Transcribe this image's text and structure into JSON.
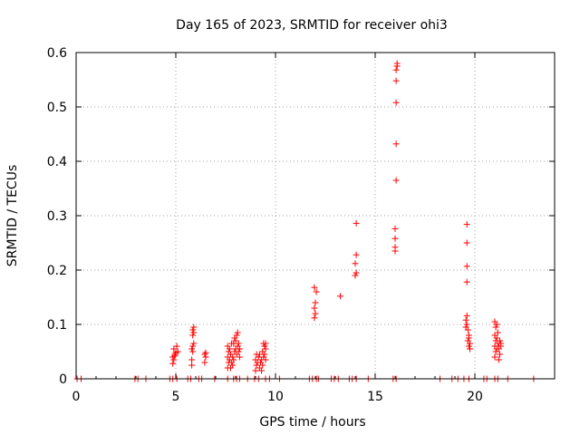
{
  "chart_data": {
    "type": "scatter",
    "title": "Day 165 of 2023, SRMTID for receiver ohi3",
    "xlabel": "GPS time / hours",
    "ylabel": "SRMTID / TECUs",
    "xlim": [
      0,
      24
    ],
    "ylim": [
      0,
      0.6
    ],
    "xticks": [
      0,
      5,
      10,
      15,
      20
    ],
    "yticks": [
      0,
      0.1,
      0.2,
      0.3,
      0.4,
      0.5,
      0.6
    ],
    "xtick_labels": [
      "0",
      "5",
      "10",
      "15",
      "20"
    ],
    "ytick_labels": [
      "0",
      "0.1",
      "0.2",
      "0.3",
      "0.4",
      "0.5",
      "0.6"
    ],
    "grid": true,
    "marker": "+",
    "color": "#ff0000",
    "series": [
      {
        "name": "SRMTID",
        "points": [
          [
            0.05,
            0
          ],
          [
            0.25,
            0
          ],
          [
            2.95,
            0
          ],
          [
            3.1,
            0
          ],
          [
            3.5,
            0
          ],
          [
            4.7,
            0
          ],
          [
            4.85,
            0
          ],
          [
            5.05,
            0
          ],
          [
            5.6,
            0
          ],
          [
            5.75,
            0
          ],
          [
            6.15,
            0
          ],
          [
            6.3,
            0
          ],
          [
            6.95,
            0
          ],
          [
            7.6,
            0
          ],
          [
            7.9,
            0
          ],
          [
            8.05,
            0
          ],
          [
            8.2,
            0
          ],
          [
            8.6,
            0
          ],
          [
            8.95,
            0
          ],
          [
            9.15,
            0
          ],
          [
            9.5,
            0
          ],
          [
            9.7,
            0
          ],
          [
            10.2,
            0
          ],
          [
            11.7,
            0
          ],
          [
            11.85,
            0
          ],
          [
            12.05,
            0
          ],
          [
            12.15,
            0
          ],
          [
            12.8,
            0
          ],
          [
            12.95,
            0
          ],
          [
            13.15,
            0
          ],
          [
            13.7,
            0
          ],
          [
            13.85,
            0
          ],
          [
            14.05,
            0
          ],
          [
            14.65,
            0
          ],
          [
            15.9,
            0
          ],
          [
            16.05,
            0
          ],
          [
            18.25,
            0
          ],
          [
            18.85,
            0
          ],
          [
            19.15,
            0
          ],
          [
            19.45,
            0
          ],
          [
            19.7,
            0
          ],
          [
            20.45,
            0
          ],
          [
            20.6,
            0
          ],
          [
            21.0,
            0
          ],
          [
            21.15,
            0
          ],
          [
            21.65,
            0
          ],
          [
            22.95,
            0
          ],
          [
            4.85,
            0.028
          ],
          [
            4.9,
            0.035
          ],
          [
            4.95,
            0.042
          ],
          [
            5.0,
            0.048
          ],
          [
            4.9,
            0.055
          ],
          [
            5.05,
            0.06
          ],
          [
            4.95,
            0.045
          ],
          [
            5.1,
            0.05
          ],
          [
            4.85,
            0.04
          ],
          [
            5.8,
            0.025
          ],
          [
            5.8,
            0.035
          ],
          [
            5.85,
            0.05
          ],
          [
            5.8,
            0.055
          ],
          [
            5.85,
            0.06
          ],
          [
            5.9,
            0.065
          ],
          [
            5.85,
            0.08
          ],
          [
            5.9,
            0.085
          ],
          [
            5.85,
            0.09
          ],
          [
            5.9,
            0.095
          ],
          [
            6.45,
            0.03
          ],
          [
            6.5,
            0.04
          ],
          [
            6.45,
            0.045
          ],
          [
            6.5,
            0.048
          ],
          [
            7.6,
            0.02
          ],
          [
            7.65,
            0.03
          ],
          [
            7.7,
            0.035
          ],
          [
            7.6,
            0.04
          ],
          [
            7.75,
            0.045
          ],
          [
            7.65,
            0.05
          ],
          [
            7.7,
            0.055
          ],
          [
            7.6,
            0.06
          ],
          [
            7.8,
            0.065
          ],
          [
            7.85,
            0.025
          ],
          [
            7.9,
            0.035
          ],
          [
            7.85,
            0.04
          ],
          [
            7.95,
            0.05
          ],
          [
            8.0,
            0.055
          ],
          [
            7.9,
            0.065
          ],
          [
            8.0,
            0.07
          ],
          [
            7.95,
            0.075
          ],
          [
            8.05,
            0.08
          ],
          [
            8.1,
            0.06
          ],
          [
            8.15,
            0.05
          ],
          [
            8.2,
            0.04
          ],
          [
            8.05,
            0.045
          ],
          [
            8.15,
            0.065
          ],
          [
            8.2,
            0.055
          ],
          [
            8.1,
            0.085
          ],
          [
            7.8,
            0.03
          ],
          [
            7.75,
            0.02
          ],
          [
            9.0,
            0.015
          ],
          [
            9.05,
            0.025
          ],
          [
            9.1,
            0.03
          ],
          [
            9.0,
            0.035
          ],
          [
            9.15,
            0.04
          ],
          [
            9.05,
            0.045
          ],
          [
            9.2,
            0.02
          ],
          [
            9.25,
            0.03
          ],
          [
            9.3,
            0.035
          ],
          [
            9.35,
            0.025
          ],
          [
            9.4,
            0.04
          ],
          [
            9.45,
            0.045
          ],
          [
            9.35,
            0.05
          ],
          [
            9.5,
            0.055
          ],
          [
            9.45,
            0.06
          ],
          [
            9.5,
            0.065
          ],
          [
            9.4,
            0.065
          ],
          [
            9.5,
            0.035
          ],
          [
            9.3,
            0.015
          ],
          [
            9.2,
            0.045
          ],
          [
            11.95,
            0.112
          ],
          [
            12.0,
            0.12
          ],
          [
            11.95,
            0.13
          ],
          [
            12.0,
            0.14
          ],
          [
            12.05,
            0.16
          ],
          [
            11.95,
            0.168
          ],
          [
            13.25,
            0.152
          ],
          [
            14.0,
            0.19
          ],
          [
            14.05,
            0.195
          ],
          [
            14.0,
            0.212
          ],
          [
            14.05,
            0.228
          ],
          [
            14.05,
            0.286
          ],
          [
            16.0,
            0.235
          ],
          [
            16.0,
            0.242
          ],
          [
            16.0,
            0.258
          ],
          [
            16.0,
            0.276
          ],
          [
            16.05,
            0.365
          ],
          [
            16.05,
            0.432
          ],
          [
            16.05,
            0.508
          ],
          [
            16.05,
            0.548
          ],
          [
            16.05,
            0.568
          ],
          [
            16.1,
            0.575
          ],
          [
            16.1,
            0.58
          ],
          [
            19.55,
            0.095
          ],
          [
            19.6,
            0.1
          ],
          [
            19.55,
            0.108
          ],
          [
            19.6,
            0.116
          ],
          [
            19.65,
            0.07
          ],
          [
            19.7,
            0.075
          ],
          [
            19.75,
            0.065
          ],
          [
            19.7,
            0.06
          ],
          [
            19.75,
            0.055
          ],
          [
            19.6,
            0.178
          ],
          [
            19.6,
            0.207
          ],
          [
            19.6,
            0.25
          ],
          [
            19.6,
            0.284
          ],
          [
            19.65,
            0.09
          ],
          [
            19.7,
            0.08
          ],
          [
            21.0,
            0.04
          ],
          [
            21.05,
            0.05
          ],
          [
            21.1,
            0.055
          ],
          [
            21.0,
            0.06
          ],
          [
            21.15,
            0.065
          ],
          [
            21.05,
            0.07
          ],
          [
            21.1,
            0.075
          ],
          [
            21.0,
            0.08
          ],
          [
            21.15,
            0.085
          ],
          [
            21.05,
            0.095
          ],
          [
            21.1,
            0.1
          ],
          [
            21.0,
            0.105
          ],
          [
            21.2,
            0.035
          ],
          [
            21.25,
            0.045
          ],
          [
            21.2,
            0.06
          ],
          [
            21.3,
            0.065
          ],
          [
            21.25,
            0.07
          ],
          [
            21.2,
            0.055
          ],
          [
            21.3,
            0.06
          ]
        ]
      }
    ]
  }
}
